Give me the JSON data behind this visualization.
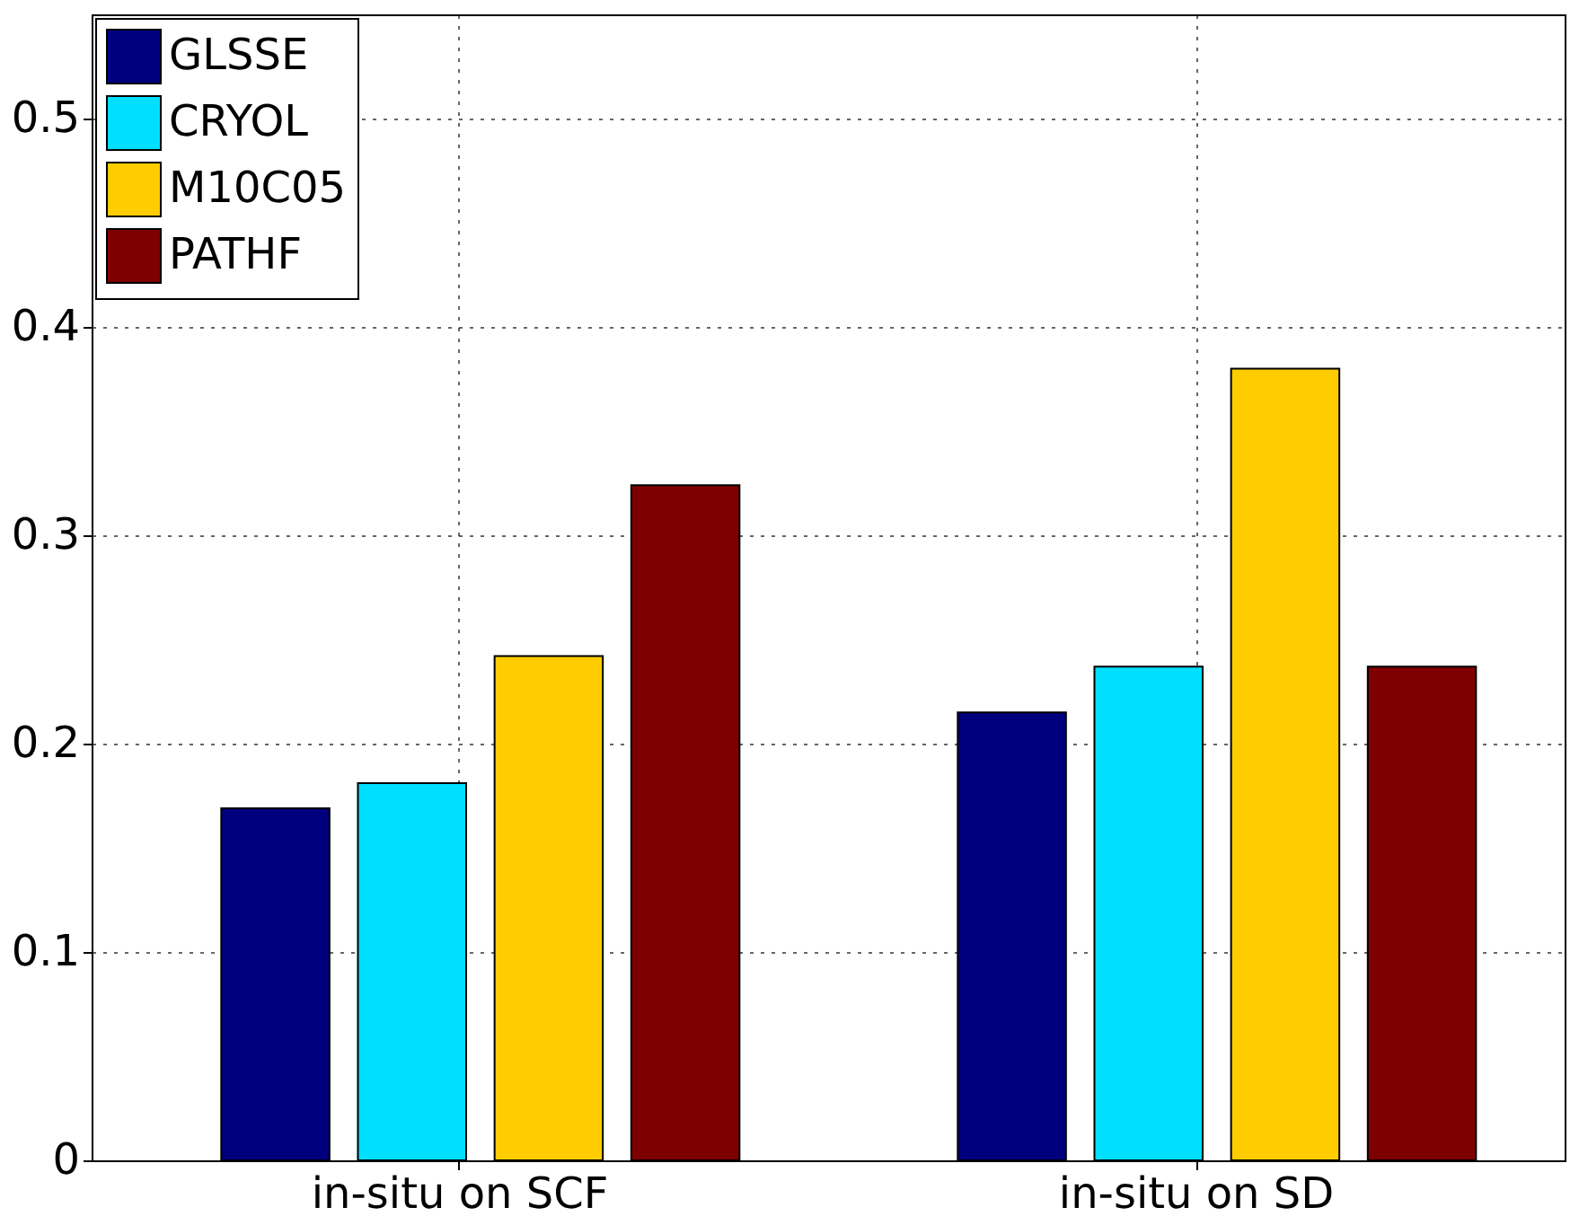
{
  "chart_data": {
    "type": "bar",
    "categories": [
      "in-situ on SCF",
      "in-situ on SD"
    ],
    "series": [
      {
        "name": "GLSSE",
        "color": "#00007f",
        "values": [
          0.169,
          0.215
        ]
      },
      {
        "name": "CRYOL",
        "color": "#00dfff",
        "values": [
          0.181,
          0.237
        ]
      },
      {
        "name": "M10C05",
        "color": "#ffcc00",
        "values": [
          0.242,
          0.38
        ]
      },
      {
        "name": "PATHF",
        "color": "#7f0000",
        "values": [
          0.324,
          0.237
        ]
      }
    ],
    "ylim": [
      0,
      0.55
    ],
    "yticks": [
      0,
      0.1,
      0.2,
      0.3,
      0.4,
      0.5
    ],
    "grid": true,
    "legend": "top left"
  }
}
